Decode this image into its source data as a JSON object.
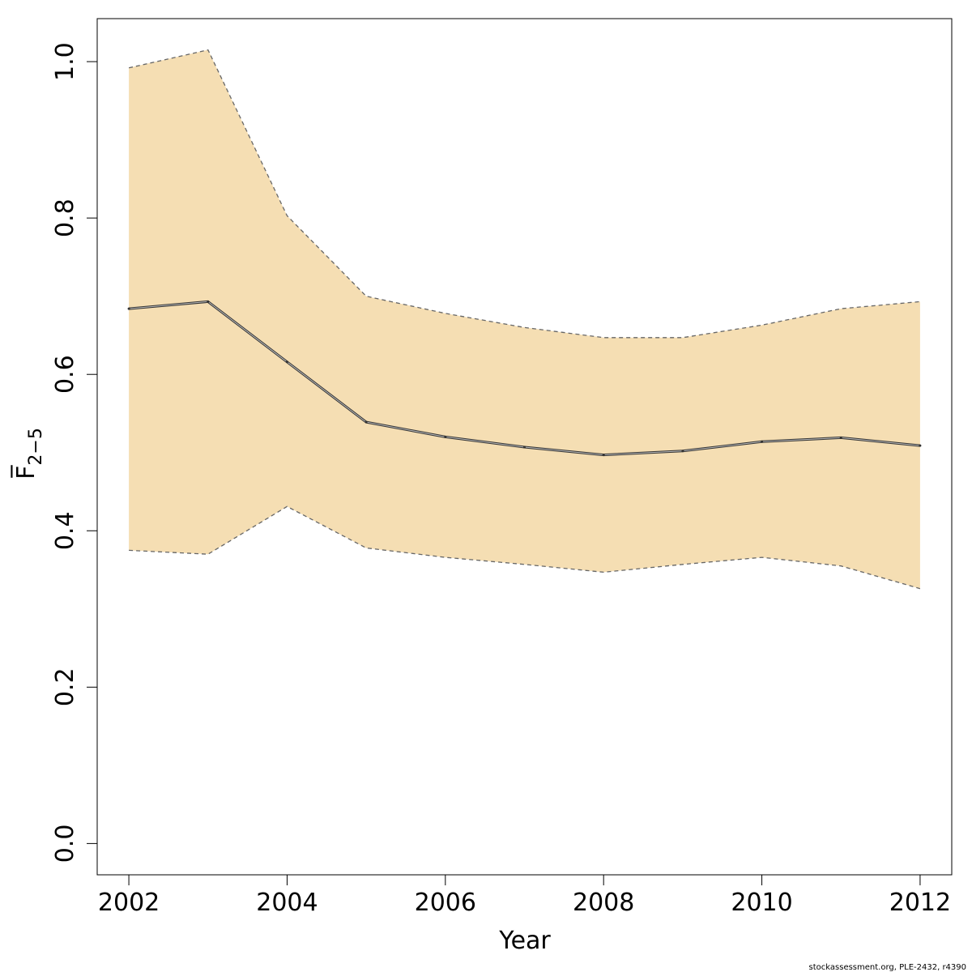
{
  "chart_data": {
    "type": "line",
    "x": [
      2002,
      2003,
      2004,
      2005,
      2006,
      2007,
      2008,
      2009,
      2010,
      2011,
      2012
    ],
    "series": [
      {
        "values": [
          0.684,
          0.693,
          0.616,
          0.539,
          0.52,
          0.507,
          0.497,
          0.502,
          0.514,
          0.519,
          0.509
        ]
      }
    ],
    "interval": {
      "lower": [
        0.375,
        0.37,
        0.431,
        0.378,
        0.366,
        0.357,
        0.347,
        0.357,
        0.366,
        0.355,
        0.326
      ],
      "upper": [
        0.992,
        1.015,
        0.803,
        0.7,
        0.678,
        0.66,
        0.647,
        0.647,
        0.663,
        0.684,
        0.693
      ]
    },
    "xlabel": "Year",
    "ylabel": "F̅",
    "ylabel_subscript": "2−5",
    "xlim": [
      2001.6,
      2012.4
    ],
    "ylim": [
      -0.04,
      1.055
    ],
    "x_ticks": [
      2002,
      2004,
      2006,
      2008,
      2010,
      2012
    ],
    "x_tick_labels": [
      "2002",
      "2004",
      "2006",
      "2008",
      "2010",
      "2012"
    ],
    "y_ticks": [
      0.0,
      0.2,
      0.4,
      0.6,
      0.8,
      1.0
    ],
    "y_tick_labels": [
      "0.0",
      "0.2",
      "0.4",
      "0.6",
      "0.8",
      "1.0"
    ],
    "grid": false,
    "colors": {
      "band_fill": "#F5DEB3",
      "bound_line": "#666666",
      "main_line": "#333333",
      "axis": "#000000"
    },
    "footnote": "stockassessment.org, PLE-2432, r4390"
  }
}
